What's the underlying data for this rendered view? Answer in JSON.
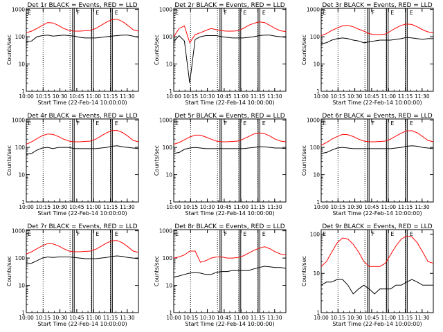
{
  "chart_data": {
    "type": "line",
    "layout": "3x3 grid of panels",
    "x_axis": {
      "label": "Start Time (22-Feb-14 10:00:00)",
      "range": [
        "10:00",
        "11:40"
      ],
      "ticks": [
        "10:00",
        "10:15",
        "10:30",
        "10:45",
        "11:00",
        "11:15",
        "11:30"
      ]
    },
    "y_axis": {
      "label": "Counts/sec",
      "scale": "log",
      "ticks": [
        "1",
        "10",
        "100",
        "1000"
      ]
    },
    "series_colors": {
      "events": "#000000",
      "lld": "#ff0000"
    },
    "markers": {
      "dotted_lines_at": [
        "10:15",
        "10:39",
        "10:58",
        "11:15"
      ],
      "solid_double_lines_at": [
        "10:42",
        "10:59",
        "11:16"
      ],
      "flag_labels": [
        "E",
        "F",
        "E",
        "E"
      ]
    },
    "panels": [
      {
        "title": "Det 1r BLACK = Events, RED = LLD",
        "events": [
          65,
          70,
          100,
          110,
          115,
          105,
          110,
          115,
          110,
          105,
          95,
          90,
          90,
          90,
          95,
          100,
          105,
          110,
          115,
          115,
          105,
          95
        ],
        "lld": [
          140,
          160,
          200,
          260,
          330,
          320,
          260,
          200,
          170,
          160,
          160,
          165,
          170,
          200,
          260,
          340,
          420,
          440,
          360,
          260,
          180,
          160
        ],
        "ylim": [
          1,
          1100
        ]
      },
      {
        "title": "Det 2r BLACK = Events, RED = LLD",
        "events": [
          65,
          110,
          70,
          2,
          80,
          100,
          110,
          110,
          110,
          100,
          95,
          90,
          90,
          90,
          95,
          100,
          110,
          115,
          115,
          105,
          100,
          95
        ],
        "lld": [
          100,
          200,
          250,
          60,
          120,
          140,
          170,
          200,
          180,
          165,
          160,
          160,
          165,
          200,
          260,
          310,
          350,
          330,
          260,
          200,
          165,
          155
        ],
        "ylim": [
          1,
          1100
        ]
      },
      {
        "title": "Det 3r BLACK = Events, RED = LLD",
        "events": [
          55,
          60,
          75,
          85,
          90,
          85,
          75,
          70,
          60,
          65,
          70,
          75,
          75,
          75,
          80,
          85,
          95,
          90,
          85,
          80,
          85,
          85
        ],
        "lld": [
          110,
          130,
          170,
          210,
          250,
          260,
          230,
          190,
          160,
          130,
          120,
          120,
          125,
          160,
          210,
          260,
          290,
          280,
          230,
          180,
          150,
          140
        ],
        "ylim": [
          1,
          1100
        ]
      },
      {
        "title": "Det 4r BLACK = Events, RED = LLD",
        "events": [
          55,
          60,
          80,
          95,
          100,
          90,
          100,
          100,
          100,
          90,
          90,
          90,
          90,
          90,
          95,
          100,
          110,
          115,
          105,
          100,
          95,
          90
        ],
        "lld": [
          130,
          160,
          210,
          270,
          310,
          300,
          250,
          200,
          170,
          160,
          160,
          165,
          170,
          200,
          260,
          340,
          410,
          420,
          350,
          260,
          180,
          160
        ],
        "ylim": [
          1,
          1100
        ]
      },
      {
        "title": "Det 5r BLACK = Events, RED = LLD",
        "events": [
          60,
          65,
          85,
          95,
          100,
          95,
          90,
          90,
          90,
          90,
          90,
          90,
          90,
          90,
          95,
          100,
          105,
          105,
          100,
          95,
          95,
          90
        ],
        "lld": [
          130,
          150,
          190,
          240,
          280,
          280,
          240,
          200,
          170,
          160,
          160,
          165,
          170,
          200,
          250,
          310,
          340,
          320,
          260,
          200,
          170,
          160
        ],
        "ylim": [
          1,
          1100
        ]
      },
      {
        "title": "Det 6r BLACK = Events, RED = LLD",
        "events": [
          60,
          65,
          80,
          95,
          100,
          95,
          90,
          90,
          90,
          90,
          90,
          90,
          90,
          90,
          95,
          100,
          110,
          115,
          110,
          100,
          95,
          90
        ],
        "lld": [
          120,
          150,
          200,
          250,
          300,
          290,
          250,
          200,
          170,
          160,
          160,
          165,
          170,
          200,
          260,
          330,
          400,
          410,
          340,
          250,
          180,
          160
        ],
        "ylim": [
          1,
          1100
        ]
      },
      {
        "title": "Det 7r BLACK = Events, RED = LLD",
        "events": [
          60,
          65,
          80,
          100,
          110,
          105,
          110,
          110,
          110,
          105,
          100,
          95,
          95,
          95,
          100,
          105,
          115,
          120,
          115,
          105,
          100,
          95
        ],
        "lld": [
          140,
          170,
          220,
          280,
          340,
          330,
          280,
          220,
          180,
          170,
          170,
          175,
          180,
          210,
          270,
          350,
          430,
          440,
          360,
          260,
          180,
          160
        ],
        "ylim": [
          1,
          1100
        ]
      },
      {
        "title": "Det 8r BLACK = Events, RED = LLD",
        "events": [
          20,
          22,
          25,
          28,
          30,
          28,
          25,
          25,
          30,
          32,
          32,
          35,
          35,
          35,
          35,
          40,
          45,
          50,
          48,
          45,
          45,
          42
        ],
        "lld": [
          100,
          110,
          130,
          180,
          180,
          70,
          80,
          100,
          110,
          110,
          100,
          100,
          105,
          120,
          150,
          190,
          230,
          260,
          220,
          170,
          140,
          130
        ],
        "ylim": [
          1,
          1100
        ]
      },
      {
        "title": "Det 9r BLACK = Events, RED = LLD",
        "events": [
          5,
          6,
          6,
          7,
          7,
          5,
          3,
          4,
          5,
          4,
          3,
          4,
          4,
          4,
          5,
          5,
          6,
          7,
          6,
          5,
          5,
          5
        ],
        "lld": [
          15,
          20,
          35,
          60,
          80,
          75,
          55,
          35,
          20,
          15,
          15,
          15,
          18,
          30,
          50,
          75,
          90,
          85,
          60,
          35,
          20,
          18
        ],
        "ylim": [
          1,
          130
        ]
      }
    ]
  }
}
